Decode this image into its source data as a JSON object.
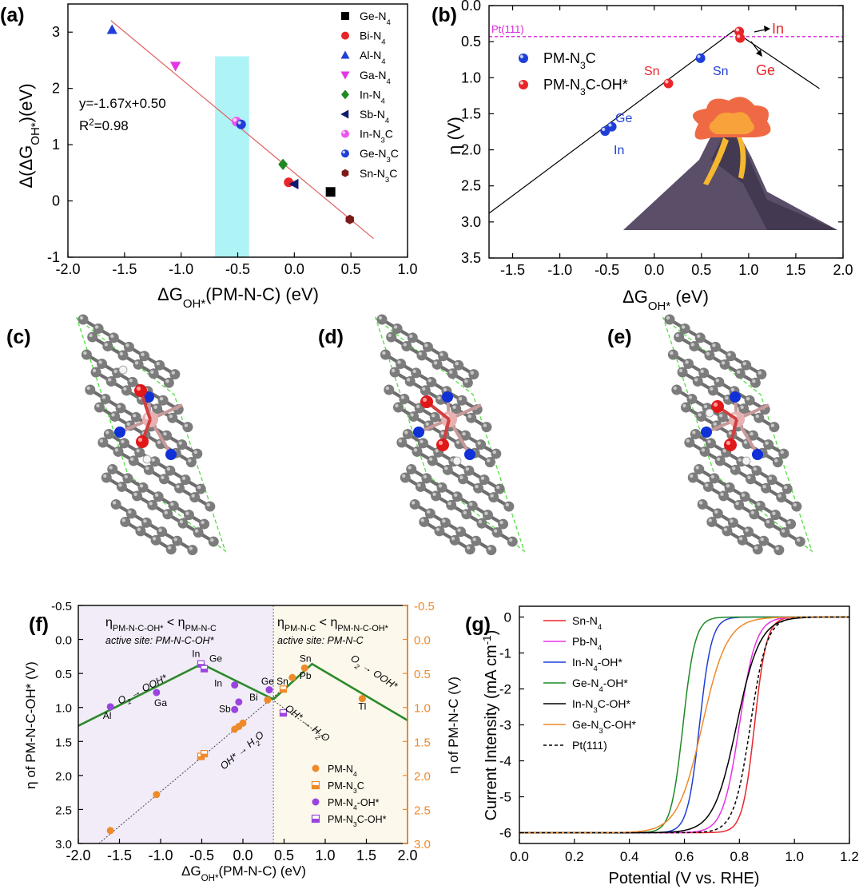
{
  "figure": {
    "panels": {
      "a": "(a)",
      "b": "(b)",
      "c": "(c)",
      "d": "(d)",
      "e": "(e)",
      "f": "(f)",
      "g": "(g)"
    }
  },
  "chart_data": [
    {
      "id": "a",
      "type": "scatter",
      "xlim": [
        -2.0,
        1.0
      ],
      "ylim": [
        -1,
        3.5
      ],
      "xticks": [
        -2.0,
        -1.5,
        -1.0,
        -0.5,
        0.0,
        0.5,
        1.0
      ],
      "xtick_labels": [
        "-2.0",
        "-1.5",
        "-1.0",
        "-0.5",
        "0.0",
        "0.5",
        "1.0"
      ],
      "yticks": [
        -1,
        0,
        1,
        2,
        3
      ],
      "ytick_labels": [
        "-1",
        "0",
        "1",
        "2",
        "3"
      ],
      "xlabel_main": "ΔG",
      "xlabel_sub": "OH*",
      "xlabel_tail": "(PM-N-C) (eV)",
      "ylabel_main": "Δ(ΔG",
      "ylabel_sub": "OH*",
      "ylabel_tail": ")(eV)",
      "fit_text": "y=-1.67x+0.50",
      "r2_text": "R",
      "r2_sup": "2",
      "r2_value": "=0.98",
      "fit_line": {
        "slope": -1.67,
        "intercept": 0.5,
        "x_range": [
          -1.62,
          0.7
        ],
        "color": "#e06060"
      },
      "highlight_band": {
        "x_range": [
          -0.7,
          -0.4
        ],
        "y_range": [
          -1,
          2.57
        ],
        "color": "#aef3f5"
      },
      "legend_position": "top-right",
      "series": [
        {
          "name": "Ge-N",
          "sub": "4",
          "post": "",
          "marker": "square",
          "color": "#000000",
          "x": 0.32,
          "y": 0.16
        },
        {
          "name": "Bi-N",
          "sub": "4",
          "post": "",
          "marker": "circle",
          "color": "#e8262a",
          "x": -0.05,
          "y": 0.33
        },
        {
          "name": "Al-N",
          "sub": "4",
          "post": "",
          "marker": "triangle-up",
          "color": "#1f3fd8",
          "x": -1.61,
          "y": 3.04
        },
        {
          "name": "Ga-N",
          "sub": "4",
          "post": "",
          "marker": "triangle-down",
          "color": "#e633e6",
          "x": -1.05,
          "y": 2.4
        },
        {
          "name": "In-N",
          "sub": "4",
          "post": "",
          "marker": "diamond",
          "color": "#1f8a25",
          "x": -0.1,
          "y": 0.65
        },
        {
          "name": "Sb-N",
          "sub": "4",
          "post": "",
          "marker": "triangle-left",
          "color": "#101a70",
          "x": 0.0,
          "y": 0.3
        },
        {
          "name": "In-N",
          "sub": "3",
          "post": "C",
          "marker": "sphere",
          "color": "#ee55ee",
          "x": -0.51,
          "y": 1.41
        },
        {
          "name": "Ge-N",
          "sub": "3",
          "post": "C",
          "marker": "sphere",
          "color": "#1f3fd8",
          "x": -0.47,
          "y": 1.36
        },
        {
          "name": "Sn-N",
          "sub": "3",
          "post": "C",
          "marker": "hexagon",
          "color": "#7a1a1a",
          "x": 0.49,
          "y": -0.33
        }
      ]
    },
    {
      "id": "b",
      "type": "scatter",
      "xlim": [
        -1.75,
        2.0
      ],
      "ylim": [
        0.0,
        3.5
      ],
      "y_inverted": true,
      "xticks": [
        -1.5,
        -1.0,
        -0.5,
        0.0,
        0.5,
        1.0,
        1.5,
        2.0
      ],
      "xtick_labels": [
        "-1.5",
        "-1.0",
        "-0.5",
        "0.0",
        "0.5",
        "1.0",
        "1.5",
        "2.0"
      ],
      "yticks": [
        0.0,
        0.5,
        1.0,
        1.5,
        2.0,
        2.5,
        3.0,
        3.5
      ],
      "ytick_labels": [
        "0.0",
        "0.5",
        "1.0",
        "1.5",
        "2.0",
        "2.5",
        "3.0",
        "3.5"
      ],
      "xlabel_main": "ΔG",
      "xlabel_sub": "OH*",
      "xlabel_tail": " (eV)",
      "ylabel_main": "η (V)",
      "reference_line": {
        "label": "Pt(111)",
        "y": 0.43,
        "color": "#dd22dd"
      },
      "volcano": {
        "peak": [
          0.84,
          0.35
        ],
        "left_end": [
          -1.75,
          2.88
        ],
        "right_end": [
          1.75,
          1.15
        ]
      },
      "legend": [
        {
          "name": "PM-N",
          "sub": "3",
          "post": "C",
          "color": "#1f3fd8"
        },
        {
          "name": "PM-N",
          "sub": "3",
          "post": "C-OH*",
          "color": "#e8262a"
        }
      ],
      "series": [
        {
          "name": "PM-N3C",
          "color": "#1f3fd8",
          "points": [
            {
              "label": "Ge",
              "x": -0.45,
              "y": 1.68
            },
            {
              "label": "In",
              "x": -0.52,
              "y": 1.74
            },
            {
              "label": "Sn",
              "x": 0.49,
              "y": 0.73
            }
          ]
        },
        {
          "name": "PM-N3C-OH*",
          "color": "#e8262a",
          "points": [
            {
              "label": "Sn",
              "x": 0.15,
              "y": 1.08
            },
            {
              "label": "In",
              "x": 0.9,
              "y": 0.36
            },
            {
              "label": "Ge",
              "x": 0.91,
              "y": 0.45
            }
          ]
        }
      ]
    },
    {
      "id": "f",
      "type": "scatter",
      "xlim": [
        -2.0,
        2.0
      ],
      "ylim_left": [
        -0.5,
        3.0
      ],
      "ylim_right": [
        -0.5,
        3.0
      ],
      "y_inverted": true,
      "split_x": 0.37,
      "xticks": [
        -2.0,
        -1.5,
        -1.0,
        -0.5,
        0.0,
        0.5,
        1.0,
        1.5,
        2.0
      ],
      "xtick_labels": [
        "-2.0",
        "-1.5",
        "-1.0",
        "-0.5",
        "0.0",
        "0.5",
        "1.0",
        "1.5",
        "2.0"
      ],
      "yticks": [
        -0.5,
        0.0,
        0.5,
        1.0,
        1.5,
        2.0,
        2.5,
        3.0
      ],
      "ytick_labels": [
        "-0.5",
        "0.0",
        "0.5",
        "1.0",
        "1.5",
        "2.0",
        "2.5",
        "3.0"
      ],
      "xlabel_main": "ΔG",
      "xlabel_sub": "OH*",
      "xlabel_tail": "(PM-N-C) (eV)",
      "ylabel_left": "η of PM-N-C-OH* (V)",
      "ylabel_right": "η of PM-N-C (V)",
      "left_header": {
        "eta": "η",
        "sub1": "PM-N-C-OH*",
        "lt": " < η",
        "sub2": "PM-N-C",
        "note": "active site: PM-N-C-OH*"
      },
      "right_header": {
        "eta": "η",
        "sub1": "PM-N-C",
        "lt": " < η",
        "sub2": "PM-N-C-OH*",
        "note": "active site: PM-N-C"
      },
      "reaction_labels": [
        "O",
        "2",
        " → OOH*",
        "OH* → H",
        "2",
        "O",
        "OH* → H",
        "2",
        "O",
        "O",
        "2",
        " → OOH*"
      ],
      "volcano_left": [
        [
          -2.0,
          1.27
        ],
        [
          -0.5,
          0.36
        ],
        [
          0.37,
          0.88
        ]
      ],
      "volcano_right": [
        [
          0.37,
          0.88
        ],
        [
          0.84,
          0.36
        ],
        [
          2.0,
          1.19
        ]
      ],
      "legend": [
        {
          "name": "PM-N",
          "sub": "4",
          "post": "",
          "marker": "circle",
          "color": "#ee8a2a"
        },
        {
          "name": "PM-N",
          "sub": "3",
          "post": "C",
          "marker": "half-square-orange",
          "color": "#ee8a2a"
        },
        {
          "name": "PM-N",
          "sub": "4",
          "post": "-OH*",
          "marker": "circle",
          "color": "#9a44e0"
        },
        {
          "name": "PM-N",
          "sub": "3",
          "post": "C-OH*",
          "marker": "half-square-purple",
          "color": "#9a44e0"
        }
      ],
      "series": [
        {
          "name": "PM-N4",
          "color": "#ee8a2a",
          "points": [
            {
              "x": -1.61,
              "y": 2.81
            },
            {
              "x": -1.05,
              "y": 2.28
            },
            {
              "x": -0.1,
              "y": 1.32
            },
            {
              "x": -0.05,
              "y": 1.28
            },
            {
              "x": 0.0,
              "y": 1.23
            },
            {
              "x": 0.3,
              "y": 0.89
            },
            {
              "x": 0.6,
              "y": 0.56
            },
            {
              "x": 0.75,
              "y": 0.42
            },
            {
              "x": 1.45,
              "y": 0.87
            }
          ]
        },
        {
          "name": "PM-N3C",
          "color": "#ee8a2a",
          "points": [
            {
              "x": -0.51,
              "y": 1.72
            },
            {
              "x": -0.47,
              "y": 1.68
            },
            {
              "x": 0.49,
              "y": 0.73
            }
          ]
        },
        {
          "name": "PM-N4-OH*",
          "color": "#9a44e0",
          "points": [
            {
              "label": "Al",
              "x": -1.61,
              "y": 0.99
            },
            {
              "label": "Ga",
              "x": -1.05,
              "y": 0.78
            },
            {
              "label": "In",
              "x": -0.1,
              "y": 0.67
            },
            {
              "label": "Bi",
              "x": -0.05,
              "y": 0.92
            },
            {
              "label": "Sb",
              "x": -0.1,
              "y": 1.03
            },
            {
              "label": "Ge",
              "x": 0.32,
              "y": 0.74
            }
          ]
        },
        {
          "name": "PM-N3C-OH*",
          "color": "#9a44e0",
          "points": [
            {
              "label": "In",
              "x": -0.51,
              "y": 0.36
            },
            {
              "label": "Ge",
              "x": -0.47,
              "y": 0.43
            },
            {
              "x": 0.49,
              "y": 1.08
            }
          ]
        }
      ],
      "point_labels": [
        {
          "text": "In",
          "x": -0.57,
          "y": 0.26
        },
        {
          "text": "Ge",
          "x": -0.33,
          "y": 0.33
        },
        {
          "text": "In",
          "x": -0.3,
          "y": 0.69
        },
        {
          "text": "Bi",
          "x": 0.13,
          "y": 0.9
        },
        {
          "text": "Sb",
          "x": -0.22,
          "y": 1.07
        },
        {
          "text": "Ge",
          "x": 0.3,
          "y": 0.66
        },
        {
          "text": "Sn",
          "x": 0.48,
          "y": 0.66
        },
        {
          "text": "Sn",
          "x": 0.76,
          "y": 0.33
        },
        {
          "text": "Pb",
          "x": 0.76,
          "y": 0.58
        },
        {
          "text": "Tl",
          "x": 1.45,
          "y": 1.03
        },
        {
          "text": "Al",
          "x": -1.65,
          "y": 1.17
        },
        {
          "text": "Ga",
          "x": -1.0,
          "y": 0.98
        }
      ]
    },
    {
      "id": "g",
      "type": "line",
      "xlim": [
        0.0,
        1.2
      ],
      "ylim": [
        -6.3,
        0.3
      ],
      "xticks": [
        0.0,
        0.2,
        0.4,
        0.6,
        0.8,
        1.0,
        1.2
      ],
      "xtick_labels": [
        "0.0",
        "0.2",
        "0.4",
        "0.6",
        "0.8",
        "1.0",
        "1.2"
      ],
      "yticks": [
        0,
        -1,
        -2,
        -3,
        -4,
        -5,
        -6
      ],
      "ytick_labels": [
        "0",
        "-1",
        "-2",
        "-3",
        "-4",
        "-5",
        "-6"
      ],
      "xlabel": "Potential (V vs. RHE)",
      "ylabel_main": "Current Intensity (mA cm",
      "ylabel_sup": "-1",
      "ylabel_tail": ")",
      "legend_position": "top-left",
      "series": [
        {
          "name": "Sn-N",
          "sub": "4",
          "post": "",
          "color": "#e8262a",
          "dash": false,
          "e_half": 0.855,
          "k": 0.022
        },
        {
          "name": "Pb-N",
          "sub": "4",
          "post": "",
          "color": "#e633e6",
          "dash": false,
          "e_half": 0.8,
          "k": 0.03
        },
        {
          "name": "In-N",
          "sub": "4",
          "post": "-OH*",
          "color": "#1f3fd8",
          "dash": false,
          "e_half": 0.655,
          "k": 0.022
        },
        {
          "name": "Ge-N",
          "sub": "4",
          "post": "-OH*",
          "color": "#1f8a25",
          "dash": false,
          "e_half": 0.595,
          "k": 0.022
        },
        {
          "name": "In-N",
          "sub": "3",
          "post": "C-OH*",
          "color": "#000000",
          "dash": false,
          "e_half": 0.79,
          "k": 0.042
        },
        {
          "name": "Ge-N",
          "sub": "3",
          "post": "C-OH*",
          "color": "#ee8a2a",
          "dash": false,
          "e_half": 0.665,
          "k": 0.045
        },
        {
          "name": "Pt(111)",
          "sub": "",
          "post": "",
          "color": "#000000",
          "dash": true,
          "e_half": 0.84,
          "k": 0.03
        }
      ],
      "limit_current": -6.0
    }
  ],
  "structures": [
    {
      "id": "c",
      "label": "(c)"
    },
    {
      "id": "d",
      "label": "(d)"
    },
    {
      "id": "e",
      "label": "(e)"
    }
  ]
}
